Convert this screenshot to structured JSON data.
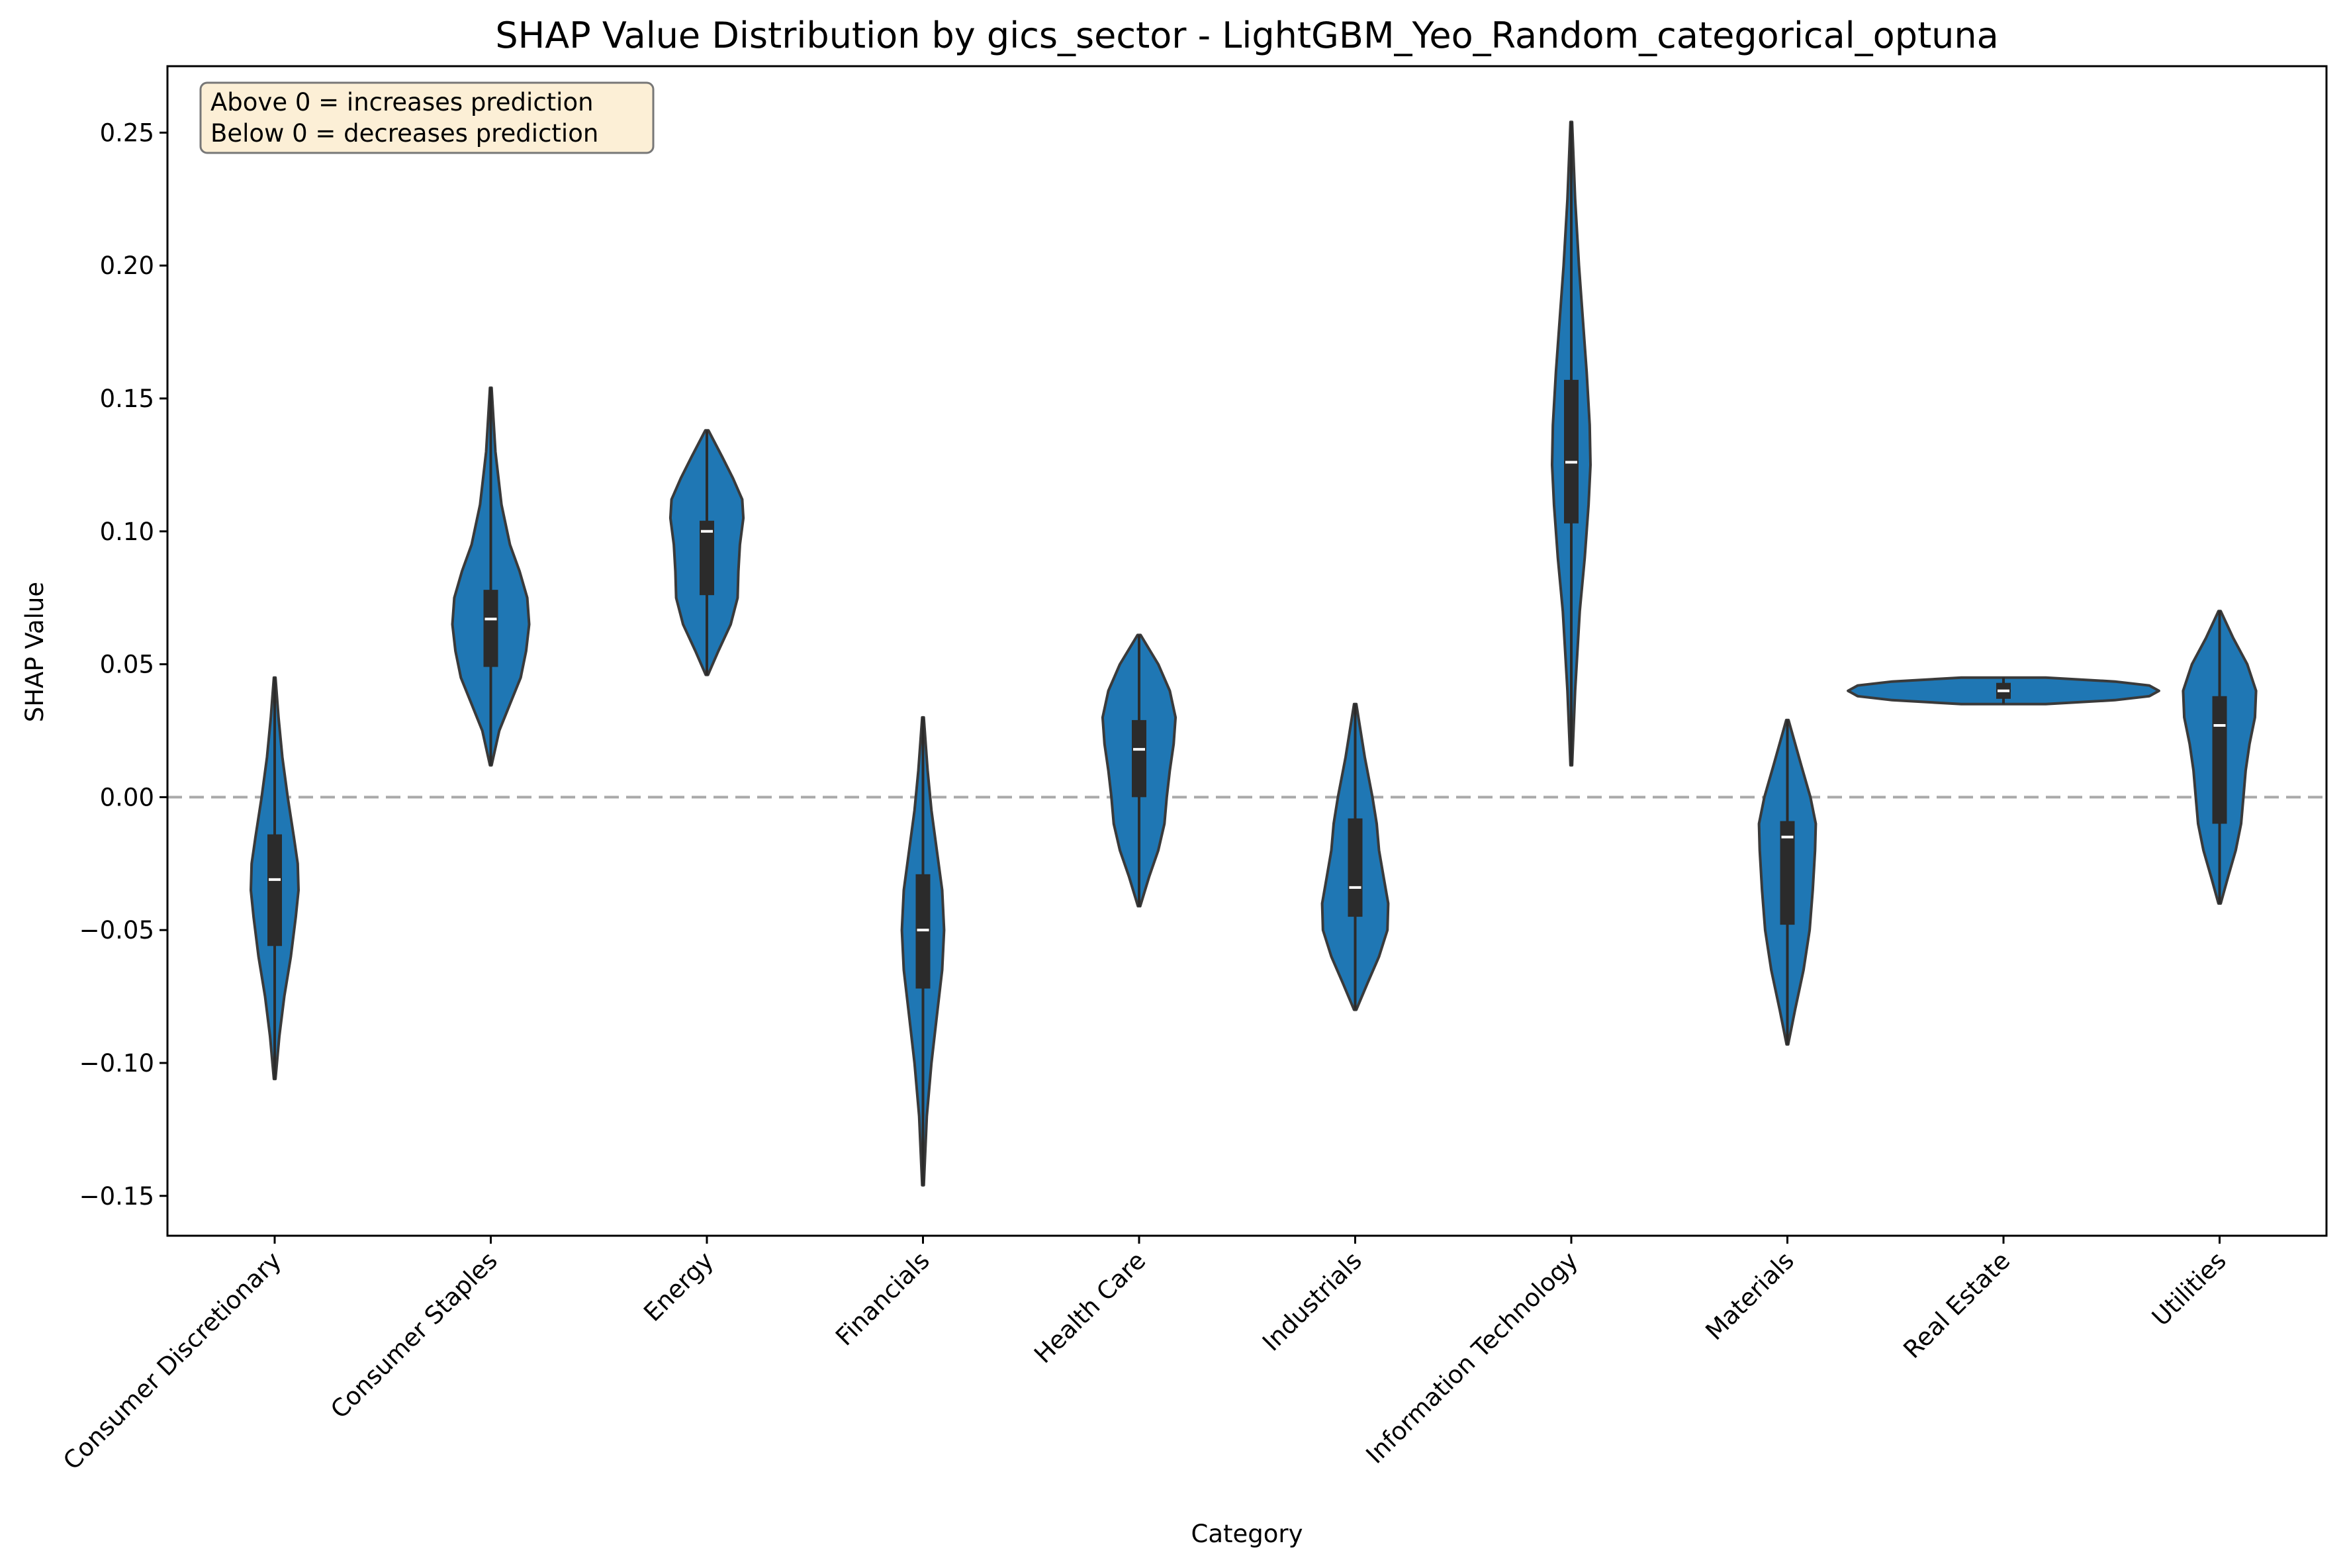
{
  "chart_data": {
    "type": "violin",
    "title": "SHAP Value Distribution by gics_sector - LightGBM_Yeo_Random_categorical_optuna",
    "xlabel": "Category",
    "ylabel": "SHAP Value",
    "ylim": [
      -0.165,
      0.275
    ],
    "yticks": [
      -0.15,
      -0.1,
      -0.05,
      0.0,
      0.05,
      0.1,
      0.15,
      0.2,
      0.25
    ],
    "ytick_labels": [
      "−0.15",
      "−0.10",
      "−0.05",
      "0.00",
      "0.05",
      "0.10",
      "0.15",
      "0.20",
      "0.25"
    ],
    "reference_line": 0.0,
    "grid": false,
    "annotation_lines": [
      "Above 0 = increases prediction",
      "Below 0 = decreases prediction"
    ],
    "colors": {
      "violin": "#1f77b4",
      "edge": "#3a3a3a",
      "box": "#2b2b2b",
      "median": "#ffffff",
      "refline": "#aaaaaa",
      "annot_bg": "#fcefd6"
    },
    "categories": [
      "Consumer Discretionary",
      "Consumer Staples",
      "Energy",
      "Financials",
      "Health Care",
      "Industrials",
      "Information Technology",
      "Materials",
      "Real Estate",
      "Utilities"
    ],
    "violins": [
      {
        "category": "Consumer Discretionary",
        "min": -0.106,
        "max": 0.045,
        "q1": -0.056,
        "median": -0.031,
        "q3": -0.014,
        "profile": [
          [
            -0.106,
            0.02
          ],
          [
            -0.09,
            0.12
          ],
          [
            -0.075,
            0.25
          ],
          [
            -0.06,
            0.42
          ],
          [
            -0.045,
            0.55
          ],
          [
            -0.035,
            0.62
          ],
          [
            -0.025,
            0.6
          ],
          [
            -0.015,
            0.5
          ],
          [
            0.0,
            0.34
          ],
          [
            0.015,
            0.2
          ],
          [
            0.03,
            0.1
          ],
          [
            0.045,
            0.02
          ]
        ]
      },
      {
        "category": "Consumer Staples",
        "min": 0.012,
        "max": 0.154,
        "q1": 0.049,
        "median": 0.067,
        "q3": 0.078,
        "profile": [
          [
            0.012,
            0.02
          ],
          [
            0.025,
            0.22
          ],
          [
            0.035,
            0.5
          ],
          [
            0.045,
            0.78
          ],
          [
            0.055,
            0.92
          ],
          [
            0.065,
            1.0
          ],
          [
            0.075,
            0.95
          ],
          [
            0.085,
            0.75
          ],
          [
            0.095,
            0.5
          ],
          [
            0.11,
            0.28
          ],
          [
            0.13,
            0.12
          ],
          [
            0.154,
            0.02
          ]
        ]
      },
      {
        "category": "Energy",
        "min": 0.046,
        "max": 0.138,
        "q1": 0.076,
        "median": 0.1,
        "q3": 0.104,
        "profile": [
          [
            0.046,
            0.03
          ],
          [
            0.055,
            0.3
          ],
          [
            0.065,
            0.62
          ],
          [
            0.075,
            0.8
          ],
          [
            0.085,
            0.82
          ],
          [
            0.095,
            0.86
          ],
          [
            0.105,
            0.95
          ],
          [
            0.112,
            0.92
          ],
          [
            0.12,
            0.68
          ],
          [
            0.128,
            0.4
          ],
          [
            0.138,
            0.04
          ]
        ]
      },
      {
        "category": "Financials",
        "min": -0.146,
        "max": 0.03,
        "q1": -0.072,
        "median": -0.05,
        "q3": -0.029,
        "profile": [
          [
            -0.146,
            0.02
          ],
          [
            -0.12,
            0.1
          ],
          [
            -0.1,
            0.22
          ],
          [
            -0.08,
            0.38
          ],
          [
            -0.065,
            0.5
          ],
          [
            -0.05,
            0.55
          ],
          [
            -0.035,
            0.5
          ],
          [
            -0.02,
            0.36
          ],
          [
            -0.005,
            0.22
          ],
          [
            0.01,
            0.12
          ],
          [
            0.03,
            0.02
          ]
        ]
      },
      {
        "category": "Health Care",
        "min": -0.041,
        "max": 0.061,
        "q1": 0.0,
        "median": 0.018,
        "q3": 0.029,
        "profile": [
          [
            -0.041,
            0.03
          ],
          [
            -0.03,
            0.26
          ],
          [
            -0.02,
            0.5
          ],
          [
            -0.01,
            0.66
          ],
          [
            0.0,
            0.72
          ],
          [
            0.01,
            0.8
          ],
          [
            0.02,
            0.9
          ],
          [
            0.03,
            0.95
          ],
          [
            0.04,
            0.8
          ],
          [
            0.05,
            0.5
          ],
          [
            0.061,
            0.04
          ]
        ]
      },
      {
        "category": "Industrials",
        "min": -0.08,
        "max": 0.035,
        "q1": -0.045,
        "median": -0.034,
        "q3": -0.008,
        "profile": [
          [
            -0.08,
            0.03
          ],
          [
            -0.07,
            0.32
          ],
          [
            -0.06,
            0.62
          ],
          [
            -0.05,
            0.84
          ],
          [
            -0.04,
            0.86
          ],
          [
            -0.03,
            0.74
          ],
          [
            -0.02,
            0.62
          ],
          [
            -0.01,
            0.56
          ],
          [
            0.0,
            0.45
          ],
          [
            0.015,
            0.25
          ],
          [
            0.035,
            0.03
          ]
        ]
      },
      {
        "category": "Information Technology",
        "min": 0.012,
        "max": 0.254,
        "q1": 0.103,
        "median": 0.126,
        "q3": 0.157,
        "profile": [
          [
            0.012,
            0.02
          ],
          [
            0.04,
            0.1
          ],
          [
            0.07,
            0.22
          ],
          [
            0.09,
            0.35
          ],
          [
            0.11,
            0.45
          ],
          [
            0.125,
            0.5
          ],
          [
            0.14,
            0.48
          ],
          [
            0.16,
            0.4
          ],
          [
            0.18,
            0.3
          ],
          [
            0.2,
            0.2
          ],
          [
            0.225,
            0.1
          ],
          [
            0.254,
            0.02
          ]
        ]
      },
      {
        "category": "Materials",
        "min": -0.093,
        "max": 0.029,
        "q1": -0.048,
        "median": -0.015,
        "q3": -0.009,
        "profile": [
          [
            -0.093,
            0.02
          ],
          [
            -0.08,
            0.2
          ],
          [
            -0.065,
            0.42
          ],
          [
            -0.05,
            0.58
          ],
          [
            -0.035,
            0.66
          ],
          [
            -0.02,
            0.72
          ],
          [
            -0.01,
            0.74
          ],
          [
            0.0,
            0.6
          ],
          [
            0.012,
            0.36
          ],
          [
            0.029,
            0.03
          ]
        ]
      },
      {
        "category": "Real Estate",
        "min": 0.035,
        "max": 0.045,
        "q1": 0.037,
        "median": 0.04,
        "q3": 0.043,
        "profile": [
          [
            0.035,
            1.1
          ],
          [
            0.0365,
            2.9
          ],
          [
            0.038,
            3.8
          ],
          [
            0.04,
            4.05
          ],
          [
            0.042,
            3.8
          ],
          [
            0.0435,
            2.9
          ],
          [
            0.045,
            1.1
          ]
        ]
      },
      {
        "category": "Utilities",
        "min": -0.04,
        "max": 0.07,
        "q1": -0.01,
        "median": 0.027,
        "q3": 0.038,
        "profile": [
          [
            -0.04,
            0.03
          ],
          [
            -0.03,
            0.22
          ],
          [
            -0.02,
            0.42
          ],
          [
            -0.01,
            0.56
          ],
          [
            0.0,
            0.62
          ],
          [
            0.01,
            0.68
          ],
          [
            0.02,
            0.78
          ],
          [
            0.03,
            0.92
          ],
          [
            0.04,
            0.95
          ],
          [
            0.05,
            0.72
          ],
          [
            0.06,
            0.35
          ],
          [
            0.07,
            0.03
          ]
        ]
      }
    ]
  }
}
